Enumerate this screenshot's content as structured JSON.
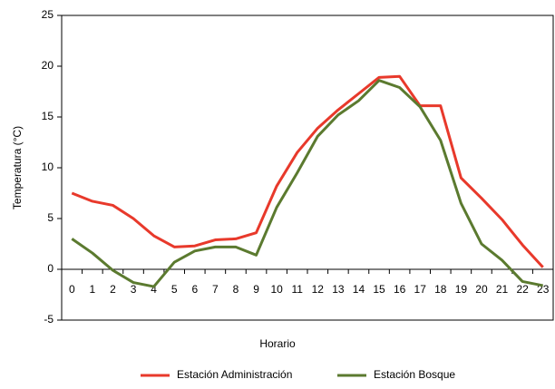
{
  "chart_data": {
    "type": "line",
    "x_label": "Horario",
    "y_label": "Temperatura (°C)",
    "categories": [
      "0",
      "1",
      "2",
      "3",
      "4",
      "5",
      "6",
      "7",
      "8",
      "9",
      "10",
      "11",
      "12",
      "13",
      "14",
      "15",
      "16",
      "17",
      "18",
      "19",
      "20",
      "21",
      "22",
      "23"
    ],
    "series": [
      {
        "name": "Estación Administración",
        "color": "#e8392b",
        "values": [
          7.5,
          6.7,
          6.3,
          5.0,
          3.3,
          2.2,
          2.3,
          2.9,
          3.0,
          3.6,
          8.2,
          11.5,
          13.9,
          15.7,
          17.3,
          18.9,
          19.0,
          16.1,
          16.1,
          9.0,
          7.0,
          4.9,
          2.4,
          0.2
        ]
      },
      {
        "name": "Estación Bosque",
        "color": "#5b7a2f",
        "values": [
          3.0,
          1.6,
          -0.1,
          -1.3,
          -1.7,
          0.7,
          1.8,
          2.2,
          2.2,
          1.4,
          6.1,
          9.5,
          13.1,
          15.2,
          16.6,
          18.6,
          17.9,
          16.0,
          12.7,
          6.5,
          2.5,
          0.9,
          -1.2,
          -1.6
        ]
      }
    ],
    "ylim": [
      -5,
      25
    ],
    "yticks": [
      -5,
      0,
      5,
      10,
      15,
      20,
      25
    ],
    "legend": "bottom"
  }
}
